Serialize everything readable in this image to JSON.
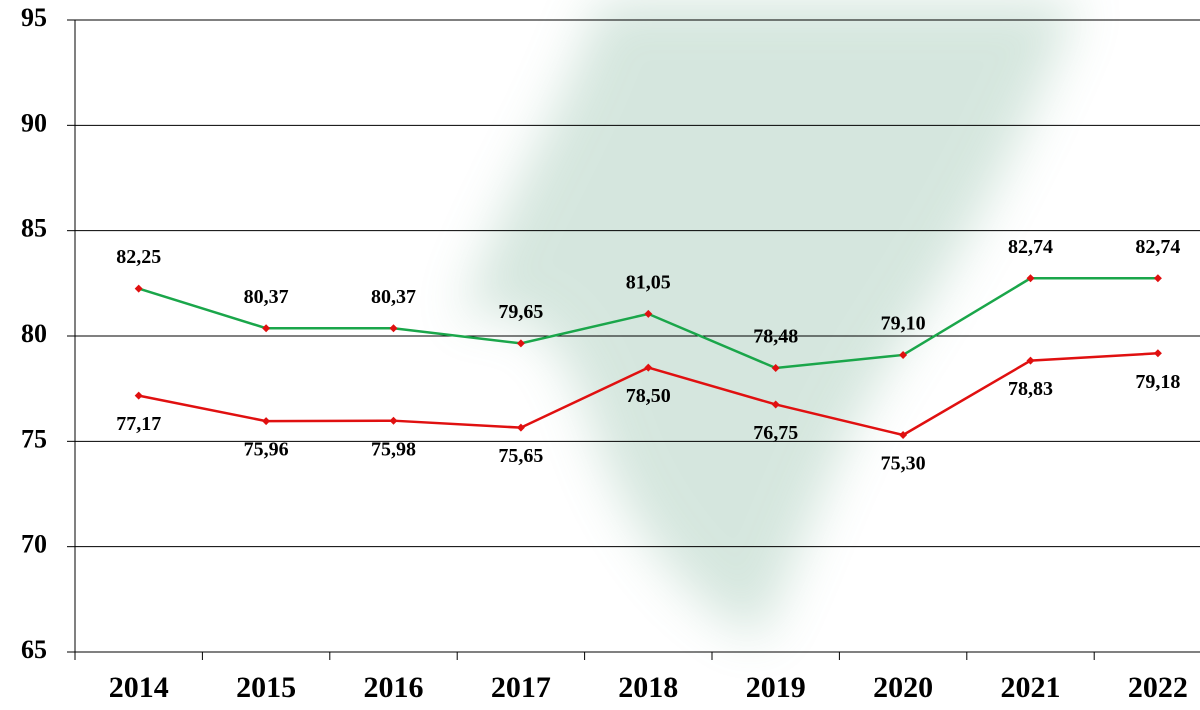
{
  "chart_data": {
    "type": "line",
    "categories": [
      "2014",
      "2015",
      "2016",
      "2017",
      "2018",
      "2019",
      "2020",
      "2021",
      "2022"
    ],
    "series": [
      {
        "color": "#1aa64a",
        "values": [
          82.25,
          80.37,
          80.37,
          79.65,
          81.05,
          78.48,
          79.1,
          82.74,
          82.74
        ],
        "value_labels": [
          "82,25",
          "80,37",
          "80,37",
          "79,65",
          "81,05",
          "78,48",
          "79,10",
          "82,74",
          "82,74"
        ]
      },
      {
        "color": "#e01010",
        "values": [
          77.17,
          75.96,
          75.98,
          75.65,
          78.5,
          76.75,
          75.3,
          78.83,
          79.18
        ],
        "value_labels": [
          "77,17",
          "75,96",
          "75,98",
          "75,65",
          "78,50",
          "76,75",
          "75,30",
          "78,83",
          "79,18"
        ]
      }
    ],
    "ylim": [
      65,
      95
    ],
    "yticks": [
      65,
      70,
      75,
      80,
      85,
      90,
      95
    ],
    "grid": true
  }
}
